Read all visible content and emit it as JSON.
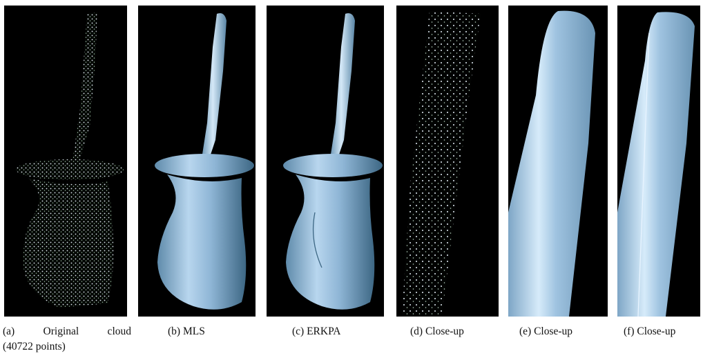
{
  "figure": {
    "panels": [
      {
        "id": "a",
        "caption_line1": "(a)  Original   cloud",
        "caption_line2": "(40722 points)"
      },
      {
        "id": "b",
        "caption": "(b) MLS"
      },
      {
        "id": "c",
        "caption": "(c) ERKPA"
      },
      {
        "id": "d",
        "caption": "(d) Close-up"
      },
      {
        "id": "e",
        "caption": "(e) Close-up"
      },
      {
        "id": "f",
        "caption": "(f) Close-up"
      }
    ],
    "colors": {
      "background": "#000000",
      "surface": "#8fb6d6",
      "points": "#dfe9f3"
    }
  }
}
